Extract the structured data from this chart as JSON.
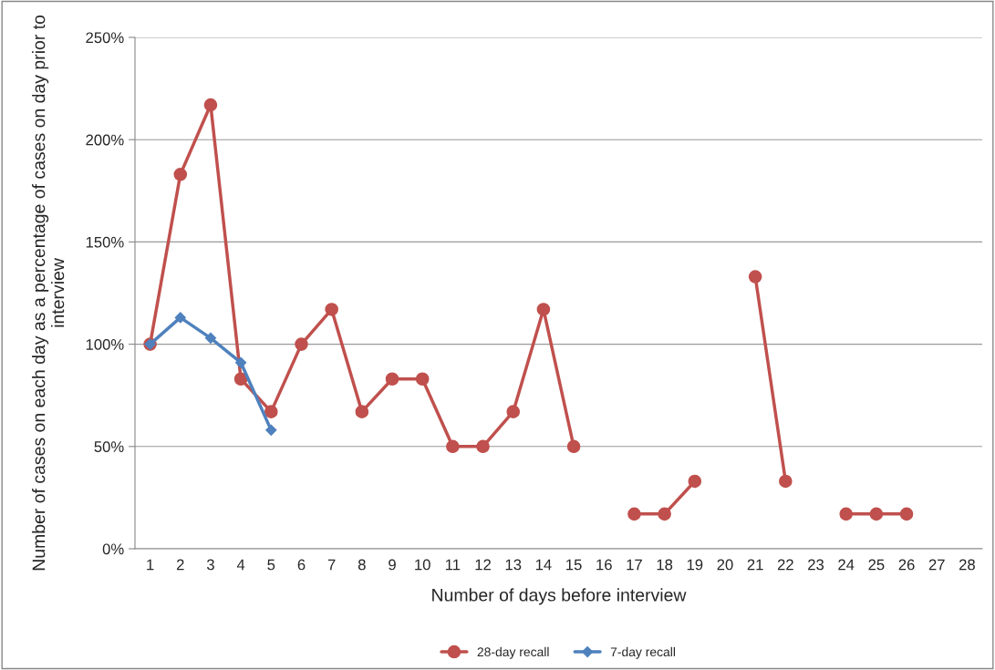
{
  "chart_data": {
    "type": "line",
    "xlabel": "Number of days before interview",
    "ylabel": "Number of cases on each day as a percentage of cases on day prior to interview",
    "categories": [
      "1",
      "2",
      "3",
      "4",
      "5",
      "6",
      "7",
      "8",
      "9",
      "10",
      "11",
      "12",
      "13",
      "14",
      "15",
      "16",
      "17",
      "18",
      "19",
      "20",
      "21",
      "22",
      "23",
      "24",
      "25",
      "26",
      "27",
      "28"
    ],
    "series": [
      {
        "name": "28-day recall",
        "color": "#c0504d",
        "marker": "circle",
        "values": [
          100,
          183,
          217,
          83,
          67,
          100,
          117,
          67,
          83,
          83,
          50,
          50,
          67,
          117,
          50,
          null,
          17,
          17,
          33,
          null,
          133,
          33,
          null,
          17,
          17,
          17,
          null,
          null
        ]
      },
      {
        "name": "7-day recall",
        "color": "#4f81bd",
        "marker": "diamond",
        "values": [
          100,
          113,
          103,
          91,
          58,
          null,
          null,
          null,
          null,
          null,
          null,
          null,
          null,
          null,
          null,
          null,
          null,
          null,
          null,
          null,
          null,
          null,
          null,
          null,
          null,
          null,
          null,
          null
        ]
      }
    ],
    "ylim": [
      0,
      250
    ],
    "yticks": [
      {
        "value": 0,
        "label": "0%"
      },
      {
        "value": 50,
        "label": "50%"
      },
      {
        "value": 100,
        "label": "100%"
      },
      {
        "value": 150,
        "label": "150%"
      },
      {
        "value": 200,
        "label": "200%"
      },
      {
        "value": 250,
        "label": "250%"
      }
    ],
    "grid": "y",
    "legend": "bottom",
    "line_style": "solid"
  }
}
